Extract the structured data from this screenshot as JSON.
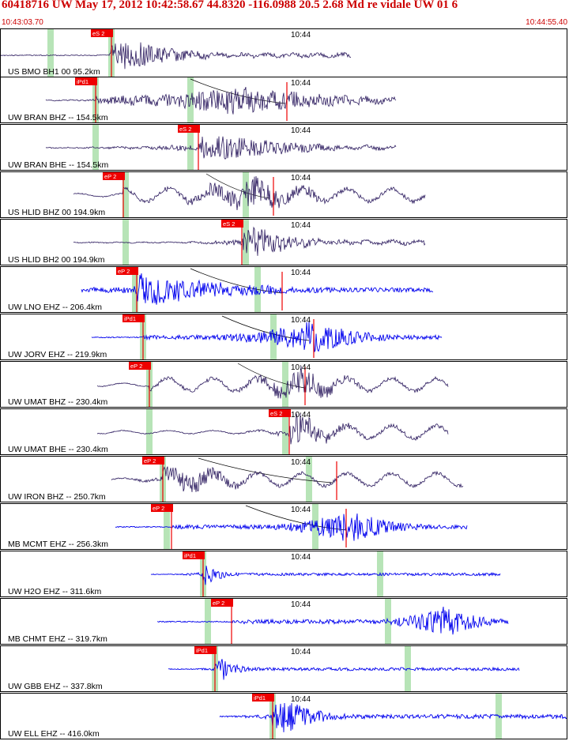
{
  "header": {
    "title": "60418716 UW May 17, 2012 10:42:58.67    44.8320 -116.0988 20.5 2.68 Md re vidale UW 01    6",
    "start_time": "10:43:03.70",
    "end_time": "10:44:55.40"
  },
  "colors": {
    "header_text": "#cc0000",
    "trace_dark": "#2b1a5e",
    "trace_blue": "#0000ee",
    "pick": "#ee0000",
    "marker_green": "#b7e4b7"
  },
  "panels": [
    {
      "station": "US BMO BH1 00 95.2km",
      "minute": "10:44",
      "color": "dark",
      "pick_label": "eS 2"
    },
    {
      "station": "UW BRAN BHZ -- 154.5km",
      "minute": "10:44",
      "color": "dark",
      "pick_label": "iPd1"
    },
    {
      "station": "UW BRAN BHE -- 154.5km",
      "minute": "10:44",
      "color": "dark",
      "pick_label": "eS 2"
    },
    {
      "station": "US HLID BHZ 00 194.9km",
      "minute": "10:44",
      "color": "dark",
      "pick_label": "eP 2"
    },
    {
      "station": "US HLID BH2 00 194.9km",
      "minute": "10:44",
      "color": "dark",
      "pick_label": "eS 2"
    },
    {
      "station": "UW LNO EHZ -- 206.4km",
      "minute": "10:44",
      "color": "blue",
      "pick_label": "eP 2"
    },
    {
      "station": "UW JORV EHZ -- 219.9km",
      "minute": "10:44",
      "color": "blue",
      "pick_label": "iPd1"
    },
    {
      "station": "UW UMAT BHZ -- 230.4km",
      "minute": "10:44",
      "color": "dark",
      "pick_label": "eP 2"
    },
    {
      "station": "UW UMAT BHE -- 230.4km",
      "minute": "10:44",
      "color": "dark",
      "pick_label": "eS 2"
    },
    {
      "station": "UW IRON BHZ -- 250.7km",
      "minute": "10:44",
      "color": "dark",
      "pick_label": "eP 2"
    },
    {
      "station": "MB MCMT EHZ -- 256.3km",
      "minute": "10:44",
      "color": "blue",
      "pick_label": "eP 2"
    },
    {
      "station": "UW H2O EHZ -- 311.6km",
      "minute": "10:44",
      "color": "blue",
      "pick_label": "iPd1"
    },
    {
      "station": "MB CHMT EHZ -- 319.7km",
      "minute": "10:44",
      "color": "blue",
      "pick_label": "eP 2"
    },
    {
      "station": "UW GBB EHZ -- 337.8km",
      "minute": "10:44",
      "color": "blue",
      "pick_label": "iPd1"
    },
    {
      "station": "UW ELL EHZ -- 416.0km",
      "minute": "10:44",
      "color": "blue",
      "pick_label": "iPd1"
    }
  ]
}
